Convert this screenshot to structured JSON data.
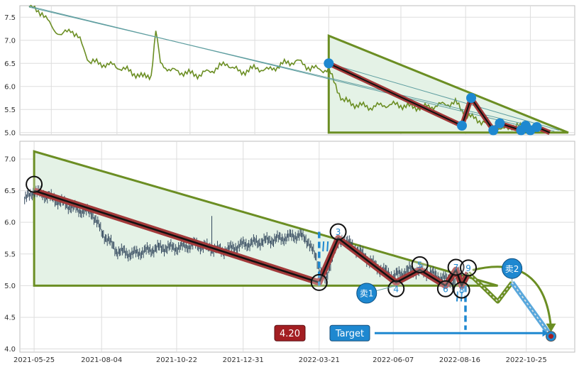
{
  "colors": {
    "background": "#ffffff",
    "grid": "#dddddd",
    "frame": "#bdbdbd",
    "price_line": "#6b8e23",
    "candles": "#34495e",
    "channel_fill": "#e4f2e6",
    "channel_stroke": "#6b8e23",
    "wave_fill": "#a33a3a",
    "wave_core": "#111111",
    "marker_blue": "#1e88d0",
    "thin_line": "#5f9ea0",
    "target_box": "#1e88d0",
    "price_box": "#a31e22",
    "projection_green": "#6b8e23",
    "projection_blue": "#5aa8dc"
  },
  "chart_data": [
    {
      "panel": "overview",
      "type": "line",
      "x_range": [
        "2021-04-21",
        "2022-12-12"
      ],
      "ylim": [
        4.95,
        7.75
      ],
      "y_ticks": [
        "7.5",
        "7.0",
        "6.5",
        "6.0",
        "5.5",
        "5.0"
      ],
      "grid": true,
      "series": [
        {
          "points": [
            [
              "2021-05-01",
              7.72
            ],
            [
              "2021-05-15",
              7.6
            ],
            [
              "2021-05-25",
              7.3
            ],
            [
              "2021-06-05",
              7.1
            ],
            [
              "2021-06-15",
              7.25
            ],
            [
              "2021-06-25",
              7.0
            ],
            [
              "2021-07-05",
              6.55
            ],
            [
              "2021-07-15",
              6.5
            ],
            [
              "2021-08-01",
              6.45
            ],
            [
              "2021-08-15",
              6.35
            ],
            [
              "2021-09-01",
              6.2
            ],
            [
              "2021-09-10",
              6.25
            ],
            [
              "2021-09-15",
              7.2
            ],
            [
              "2021-09-20",
              6.5
            ],
            [
              "2021-10-01",
              6.35
            ],
            [
              "2021-10-15",
              6.3
            ],
            [
              "2021-11-01",
              6.25
            ],
            [
              "2021-11-15",
              6.35
            ],
            [
              "2021-12-01",
              6.5
            ],
            [
              "2021-12-15",
              6.3
            ],
            [
              "2022-01-01",
              6.4
            ],
            [
              "2022-01-15",
              6.35
            ],
            [
              "2022-02-01",
              6.5
            ],
            [
              "2022-02-15",
              6.55
            ],
            [
              "2022-03-01",
              6.4
            ],
            [
              "2022-03-21",
              6.35
            ],
            [
              "2022-04-05",
              5.7
            ],
            [
              "2022-04-20",
              5.6
            ],
            [
              "2022-05-05",
              5.55
            ],
            [
              "2022-05-20",
              5.6
            ],
            [
              "2022-06-05",
              5.6
            ],
            [
              "2022-06-20",
              5.55
            ],
            [
              "2022-07-05",
              5.55
            ],
            [
              "2022-07-20",
              5.6
            ],
            [
              "2022-08-05",
              5.65
            ],
            [
              "2022-08-16",
              5.4
            ],
            [
              "2022-08-25",
              5.3
            ],
            [
              "2022-09-10",
              5.2
            ],
            [
              "2022-09-25",
              5.05
            ],
            [
              "2022-10-05",
              5.15
            ],
            [
              "2022-10-20",
              5.1
            ],
            [
              "2022-10-30",
              5.05
            ],
            [
              "2022-11-10",
              5.1
            ]
          ]
        }
      ],
      "channel": [
        [
          "2022-03-21",
          7.1
        ],
        [
          "2022-03-21",
          5.0
        ],
        [
          "2022-12-05",
          5.0
        ]
      ],
      "wave": [
        [
          "2022-03-21",
          6.5
        ],
        [
          "2022-08-12",
          5.15
        ],
        [
          "2022-08-22",
          5.75
        ],
        [
          "2022-09-15",
          5.05
        ],
        [
          "2022-09-22",
          5.2
        ],
        [
          "2022-10-15",
          5.05
        ],
        [
          "2022-10-20",
          5.15
        ],
        [
          "2022-10-25",
          5.05
        ],
        [
          "2022-11-01",
          5.12
        ],
        [
          "2022-11-15",
          5.0
        ]
      ],
      "wave_markers": [
        [
          "2022-03-21",
          6.5
        ],
        [
          "2022-08-12",
          5.15
        ],
        [
          "2022-08-22",
          5.75
        ],
        [
          "2022-09-15",
          5.05
        ],
        [
          "2022-09-22",
          5.2
        ],
        [
          "2022-10-15",
          5.05
        ],
        [
          "2022-10-20",
          5.15
        ],
        [
          "2022-10-25",
          5.05
        ],
        [
          "2022-11-01",
          5.12
        ]
      ],
      "thin_lines": [
        [
          [
            "2021-05-01",
            7.74
          ],
          [
            "2022-11-15",
            5.0
          ]
        ],
        [
          [
            "2021-05-01",
            7.72
          ],
          [
            "2022-11-20",
            5.03
          ]
        ],
        [
          [
            "2022-03-21",
            6.5
          ],
          [
            "2022-11-25",
            5.05
          ]
        ]
      ]
    },
    {
      "panel": "detail",
      "type": "candlestick",
      "x_range": [
        "2021-05-10",
        "2022-12-15"
      ],
      "ylim": [
        3.95,
        7.28
      ],
      "y_ticks": [
        "7.0",
        "6.5",
        "6.0",
        "5.5",
        "5.0",
        "4.5",
        "4.0"
      ],
      "x_ticks": [
        "2021-05-25",
        "2021-08-04",
        "2021-10-22",
        "2021-12-31",
        "2022-03-21",
        "2022-06-07",
        "2022-08-16",
        "2022-10-25"
      ],
      "grid": true,
      "candle_path": [
        [
          "2021-05-15",
          6.35
        ],
        [
          "2021-05-25",
          6.5
        ],
        [
          "2021-06-10",
          6.4
        ],
        [
          "2021-06-25",
          6.3
        ],
        [
          "2021-07-10",
          6.2
        ],
        [
          "2021-07-25",
          6.15
        ],
        [
          "2021-08-04",
          5.85
        ],
        [
          "2021-08-20",
          5.55
        ],
        [
          "2021-09-05",
          5.5
        ],
        [
          "2021-09-20",
          5.55
        ],
        [
          "2021-10-05",
          5.6
        ],
        [
          "2021-10-22",
          5.6
        ],
        [
          "2021-11-10",
          5.65
        ],
        [
          "2021-11-25",
          5.6
        ],
        [
          "2021-12-10",
          5.55
        ],
        [
          "2021-12-31",
          5.65
        ],
        [
          "2022-01-20",
          5.7
        ],
        [
          "2022-02-10",
          5.75
        ],
        [
          "2022-02-28",
          5.8
        ],
        [
          "2022-03-10",
          5.7
        ],
        [
          "2022-03-21",
          5.3
        ],
        [
          "2022-03-28",
          5.05
        ],
        [
          "2022-04-05",
          5.55
        ],
        [
          "2022-04-15",
          5.75
        ],
        [
          "2022-05-01",
          5.55
        ],
        [
          "2022-05-20",
          5.3
        ],
        [
          "2022-06-07",
          5.15
        ],
        [
          "2022-06-25",
          5.25
        ],
        [
          "2022-07-15",
          5.2
        ],
        [
          "2022-08-01",
          5.1
        ],
        [
          "2022-08-10",
          5.05
        ],
        [
          "2022-08-16",
          5.2
        ],
        [
          "2022-08-22",
          5.0
        ]
      ],
      "spike": [
        "2021-11-28",
        6.1
      ],
      "channel": [
        [
          "2021-05-25",
          7.12
        ],
        [
          "2021-05-25",
          5.0
        ],
        [
          "2022-09-25",
          5.0
        ]
      ],
      "wave": [
        [
          "2021-05-25",
          6.5
        ],
        [
          "2022-03-21",
          5.05
        ],
        [
          "2022-04-10",
          5.75
        ],
        [
          "2022-06-10",
          5.05
        ],
        [
          "2022-07-05",
          5.25
        ],
        [
          "2022-08-01",
          5.0
        ],
        [
          "2022-08-12",
          5.25
        ],
        [
          "2022-08-18",
          5.0
        ],
        [
          "2022-08-25",
          5.2
        ]
      ],
      "wave_labels": [
        {
          "label": "",
          "point": [
            "2021-05-25",
            6.6
          ]
        },
        {
          "label": "",
          "point": [
            "2022-03-21",
            5.05
          ]
        },
        {
          "label": "3",
          "point": [
            "2022-04-10",
            5.85
          ]
        },
        {
          "label": "4",
          "point": [
            "2022-06-10",
            4.95
          ]
        },
        {
          "label": "5",
          "point": [
            "2022-07-05",
            5.33
          ]
        },
        {
          "label": "6",
          "point": [
            "2022-08-01",
            4.95
          ]
        },
        {
          "label": "7",
          "point": [
            "2022-08-12",
            5.29
          ]
        },
        {
          "label": "8",
          "point": [
            "2022-08-18",
            4.93
          ]
        },
        {
          "label": "9",
          "point": [
            "2022-08-25",
            5.28
          ]
        }
      ],
      "sell_markers": [
        {
          "label": "卖1",
          "point": [
            "2022-05-10",
            4.88
          ],
          "target": [
            "2022-06-10",
            5.0
          ]
        },
        {
          "label": "卖2",
          "point": [
            "2022-10-10",
            5.27
          ],
          "target": [
            "2022-10-10",
            5.05
          ]
        }
      ],
      "projection_zigzag": [
        [
          "2022-08-25",
          5.2
        ],
        [
          "2022-09-10",
          4.97
        ],
        [
          "2022-09-25",
          4.75
        ],
        [
          "2022-10-10",
          5.05
        ]
      ],
      "projection_target": [
        "2022-11-20",
        4.2
      ],
      "target_label": "Target",
      "price_label": "4.20",
      "target_arrow_y": 4.25,
      "dashed_verticals": [
        [
          "2022-03-21",
          5.85,
          5.0
        ],
        [
          "2022-08-22",
          5.0,
          4.3
        ]
      ],
      "small_marks": [
        "2022-03-28",
        "2022-08-16"
      ]
    }
  ]
}
